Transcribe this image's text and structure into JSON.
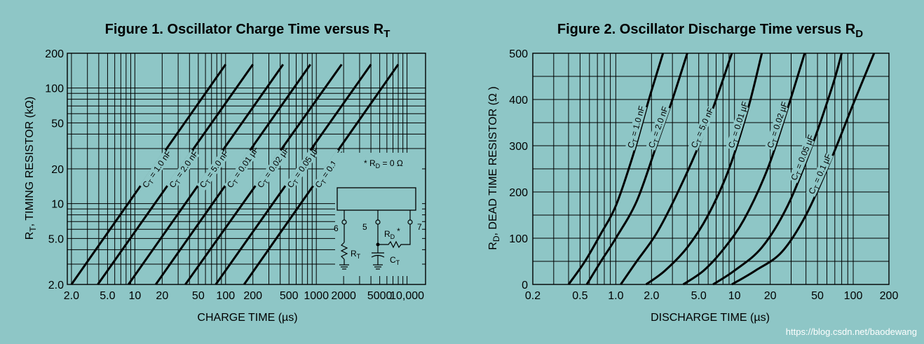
{
  "watermark": "https://blog.csdn.net/baodewang",
  "chart_data": [
    {
      "type": "line",
      "title_main": "Figure 1. Oscillator Charge Time versus R",
      "title_sub": "T",
      "xlabel": "CHARGE TIME (µs)",
      "ylabel_main": "R",
      "ylabel_sub": "T",
      "ylabel_rest": ", TIMING RESISTOR (kΩ)",
      "x_scale": "log",
      "y_scale": "log",
      "xlim": [
        1.8,
        16000
      ],
      "ylim": [
        2,
        200
      ],
      "x_ticks": [
        {
          "v": 2,
          "label": "2.0"
        },
        {
          "v": 5,
          "label": "5.0"
        },
        {
          "v": 10,
          "label": "10"
        },
        {
          "v": 20,
          "label": "20"
        },
        {
          "v": 50,
          "label": "50"
        },
        {
          "v": 100,
          "label": "100"
        },
        {
          "v": 200,
          "label": "200"
        },
        {
          "v": 500,
          "label": "500"
        },
        {
          "v": 1000,
          "label": "1000"
        },
        {
          "v": 2000,
          "label": "2000"
        },
        {
          "v": 5000,
          "label": "5000"
        },
        {
          "v": 10000,
          "label": "10,000"
        }
      ],
      "y_ticks": [
        {
          "v": 2,
          "label": "2.0"
        },
        {
          "v": 5,
          "label": "5.0"
        },
        {
          "v": 10,
          "label": "10"
        },
        {
          "v": 20,
          "label": "20"
        },
        {
          "v": 50,
          "label": "50"
        },
        {
          "v": 100,
          "label": "100"
        },
        {
          "v": 200,
          "label": "200"
        }
      ],
      "grid": true,
      "series": [
        {
          "label_pre": "C",
          "label_sub": "T",
          "label_rest": " = 1.0 nF",
          "points": [
            [
              2.0,
              2.0
            ],
            [
              100,
              160
            ]
          ]
        },
        {
          "label_pre": "C",
          "label_sub": "T",
          "label_rest": " = 2.0 nF",
          "points": [
            [
              3.9,
              2.0
            ],
            [
              200,
              160
            ]
          ]
        },
        {
          "label_pre": "C",
          "label_sub": "T",
          "label_rest": " = 5.0 nF",
          "points": [
            [
              8.5,
              2.0
            ],
            [
              430,
              160
            ]
          ]
        },
        {
          "label_pre": "C",
          "label_sub": "T",
          "label_rest": " = 0.01 µF",
          "points": [
            [
              17,
              2.0
            ],
            [
              860,
              160
            ]
          ]
        },
        {
          "label_pre": "C",
          "label_sub": "T",
          "label_rest": " = 0.02 µF",
          "points": [
            [
              36,
              2.0
            ],
            [
              1900,
              160
            ]
          ]
        },
        {
          "label_pre": "C",
          "label_sub": "T",
          "label_rest": " = 0.05 µF",
          "points": [
            [
              78,
              2.0
            ],
            [
              4000,
              160
            ]
          ]
        },
        {
          "label_pre": "C",
          "label_sub": "T",
          "label_rest": " = 0.1 µF",
          "points": [
            [
              160,
              2.0
            ],
            [
              8000,
              160
            ]
          ]
        }
      ],
      "inset": {
        "note_pre": "* R",
        "note_sub": "D",
        "note_rest": " = 0 Ω",
        "pins": [
          "6",
          "5",
          "7"
        ],
        "rt_pre": "R",
        "rt_sub": "T",
        "rd_pre": "R",
        "rd_sub": "D",
        "rd_star": "*",
        "ct_pre": "C",
        "ct_sub": "T"
      }
    },
    {
      "type": "line",
      "title_main": "Figure 2. Oscillator Discharge Time versus R",
      "title_sub": "D",
      "xlabel": "DISCHARGE TIME (µs)",
      "ylabel_main": "R",
      "ylabel_sub": "D",
      "ylabel_rest": ", DEAD TIME RESISTOR (Ω )",
      "x_scale": "log",
      "y_scale": "linear",
      "xlim": [
        0.2,
        200
      ],
      "ylim": [
        0,
        500
      ],
      "x_ticks": [
        {
          "v": 0.2,
          "label": "0.2"
        },
        {
          "v": 0.5,
          "label": "0.5"
        },
        {
          "v": 1.0,
          "label": "1.0"
        },
        {
          "v": 2.0,
          "label": "2.0"
        },
        {
          "v": 5.0,
          "label": "5.0"
        },
        {
          "v": 10,
          "label": "10"
        },
        {
          "v": 20,
          "label": "20"
        },
        {
          "v": 50,
          "label": "50"
        },
        {
          "v": 100,
          "label": "100"
        },
        {
          "v": 200,
          "label": "200"
        }
      ],
      "y_ticks": [
        {
          "v": 0,
          "label": "0"
        },
        {
          "v": 100,
          "label": "100"
        },
        {
          "v": 200,
          "label": "200"
        },
        {
          "v": 300,
          "label": "300"
        },
        {
          "v": 400,
          "label": "400"
        },
        {
          "v": 500,
          "label": "500"
        }
      ],
      "grid": true,
      "series": [
        {
          "label_pre": "C",
          "label_sub": "T",
          "label_rest": " = 1.0 nF",
          "points": [
            [
              0.4,
              0
            ],
            [
              0.55,
              50
            ],
            [
              0.75,
              110
            ],
            [
              1.0,
              170
            ],
            [
              1.4,
              280
            ],
            [
              1.9,
              400
            ],
            [
              2.5,
              500
            ]
          ]
        },
        {
          "label_pre": "C",
          "label_sub": "T",
          "label_rest": " = 2.0 nF",
          "points": [
            [
              0.57,
              0
            ],
            [
              0.75,
              50
            ],
            [
              1.0,
              100
            ],
            [
              1.5,
              180
            ],
            [
              2.2,
              300
            ],
            [
              3.0,
              400
            ],
            [
              4.0,
              500
            ]
          ]
        },
        {
          "label_pre": "C",
          "label_sub": "T",
          "label_rest": " = 5.0 nF",
          "points": [
            [
              1.1,
              0
            ],
            [
              1.5,
              50
            ],
            [
              2.2,
              110
            ],
            [
              3.2,
              190
            ],
            [
              5.0,
              300
            ],
            [
              7.0,
              400
            ],
            [
              9.5,
              500
            ]
          ]
        },
        {
          "label_pre": "C",
          "label_sub": "T",
          "label_rest": " = 0.01 µF",
          "points": [
            [
              1.8,
              0
            ],
            [
              2.6,
              30
            ],
            [
              4.0,
              80
            ],
            [
              6.0,
              150
            ],
            [
              9.0,
              250
            ],
            [
              13,
              380
            ],
            [
              17,
              500
            ]
          ]
        },
        {
          "label_pre": "C",
          "label_sub": "T",
          "label_rest": " = 0.02 µF",
          "points": [
            [
              3.7,
              0
            ],
            [
              5.5,
              30
            ],
            [
              8.0,
              75
            ],
            [
              12,
              140
            ],
            [
              19,
              250
            ],
            [
              28,
              380
            ],
            [
              39,
              500
            ]
          ]
        },
        {
          "label_pre": "C",
          "label_sub": "T",
          "label_rest": " = 0.05 µF",
          "points": [
            [
              6.6,
              0
            ],
            [
              10,
              30
            ],
            [
              17,
              80
            ],
            [
              28,
              170
            ],
            [
              45,
              300
            ],
            [
              67,
              430
            ],
            [
              80,
              500
            ]
          ]
        },
        {
          "label_pre": "C",
          "label_sub": "T",
          "label_rest": " = 0.1 µF",
          "points": [
            [
              9.5,
              0
            ],
            [
              15,
              30
            ],
            [
              25,
              70
            ],
            [
              40,
              150
            ],
            [
              65,
              270
            ],
            [
              100,
              390
            ],
            [
              150,
              500
            ]
          ]
        }
      ]
    }
  ]
}
